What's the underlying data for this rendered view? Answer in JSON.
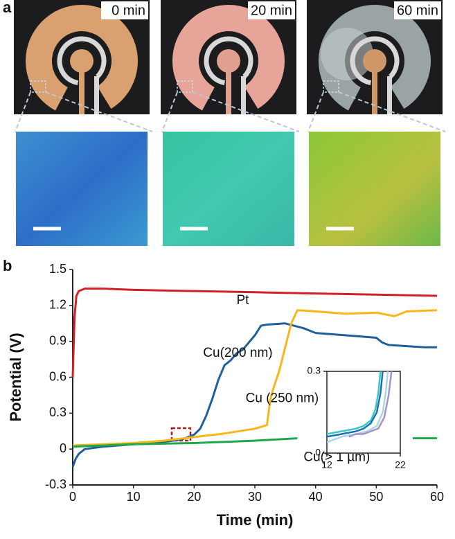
{
  "figure": {
    "panel_labels": [
      "a",
      "b"
    ],
    "time_labels": [
      "0 min",
      "20 min",
      "60 min"
    ]
  },
  "chart_data": [
    {
      "type": "line",
      "x_label": "Time (min)",
      "y_label": "Potential (V)",
      "xlim": [
        0,
        60
      ],
      "xticks": [
        0,
        10,
        20,
        30,
        40,
        50,
        60
      ],
      "ylim": [
        -0.3,
        1.5
      ],
      "yticks": [
        -0.3,
        0,
        0.3,
        0.6,
        0.9,
        1.2,
        1.5
      ],
      "series": [
        {
          "name": "Pt",
          "color": "#d0202a",
          "x": [
            0,
            0.3,
            0.6,
            1,
            2,
            5,
            10,
            20,
            30,
            40,
            50,
            60
          ],
          "values": [
            0.6,
            1.1,
            1.28,
            1.32,
            1.34,
            1.34,
            1.33,
            1.32,
            1.31,
            1.3,
            1.29,
            1.28
          ]
        },
        {
          "name": "Cu(200 nm)",
          "color": "#1f5f9a",
          "x": [
            0,
            0.5,
            1,
            2,
            5,
            10,
            15,
            18,
            20,
            21,
            22,
            23,
            24,
            25,
            26,
            27,
            28,
            30,
            31,
            32,
            35,
            38,
            40,
            45,
            50,
            51,
            52,
            55,
            58,
            60
          ],
          "values": [
            -0.15,
            -0.08,
            -0.04,
            0,
            0.02,
            0.04,
            0.06,
            0.08,
            0.12,
            0.17,
            0.28,
            0.42,
            0.58,
            0.7,
            0.74,
            0.8,
            0.83,
            0.95,
            1.03,
            1.04,
            1.05,
            1.01,
            0.97,
            0.95,
            0.93,
            0.89,
            0.87,
            0.86,
            0.85,
            0.85
          ]
        },
        {
          "name": "Cu (250 nm)",
          "color": "#f7b718",
          "x": [
            0,
            5,
            10,
            15,
            20,
            25,
            30,
            32,
            32.5,
            33,
            34,
            35,
            36,
            37,
            40,
            45,
            50,
            53,
            55,
            60
          ],
          "values": [
            0.03,
            0.04,
            0.05,
            0.07,
            0.1,
            0.13,
            0.17,
            0.2,
            0.4,
            0.5,
            0.65,
            0.85,
            1.05,
            1.16,
            1.15,
            1.13,
            1.14,
            1.11,
            1.15,
            1.16
          ]
        },
        {
          "name": "Cu(> 1 µm)",
          "color": "#1ea84a",
          "x": [
            0,
            5,
            10,
            20,
            30,
            37,
            38,
            56,
            60
          ],
          "values": [
            0.02,
            0.03,
            0.04,
            0.05,
            0.07,
            0.09,
            null,
            0.09,
            0.09
          ]
        }
      ]
    },
    {
      "type": "line",
      "xlim": [
        12,
        22
      ],
      "xticks": [
        12,
        22
      ],
      "ylim": [
        0,
        0.3
      ],
      "yticks": [
        0,
        0.3
      ],
      "box": true,
      "series": [
        {
          "color": "#3cc8c0",
          "x": [
            12,
            14,
            16,
            17,
            18,
            18.6,
            19.0,
            19.3
          ],
          "values": [
            0.07,
            0.08,
            0.09,
            0.1,
            0.12,
            0.16,
            0.22,
            0.3
          ]
        },
        {
          "color": "#1f6fb4",
          "x": [
            12,
            14,
            16,
            17,
            18,
            18.8,
            19.3,
            19.6
          ],
          "values": [
            0.06,
            0.07,
            0.08,
            0.09,
            0.11,
            0.15,
            0.22,
            0.3
          ]
        },
        {
          "color": "#a8d8e8",
          "x": [
            12,
            14,
            16,
            17.5,
            18.8,
            19.6,
            20.0,
            20.3
          ],
          "values": [
            0.04,
            0.06,
            0.07,
            0.08,
            0.1,
            0.15,
            0.22,
            0.3
          ]
        },
        {
          "color": "#a890c8",
          "x": [
            15,
            16,
            17,
            18,
            19,
            19.8,
            20.4,
            20.8
          ],
          "values": [
            0.06,
            0.07,
            0.07,
            0.08,
            0.09,
            0.13,
            0.21,
            0.3
          ]
        }
      ]
    }
  ]
}
